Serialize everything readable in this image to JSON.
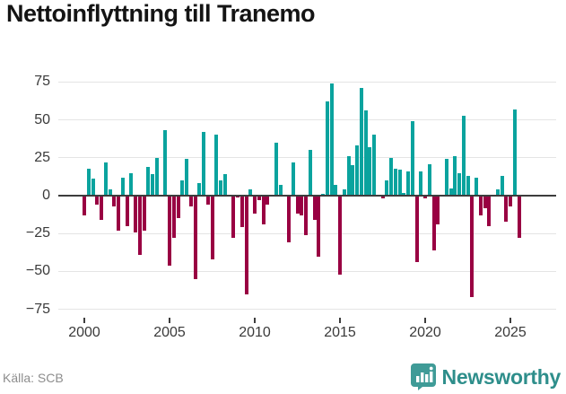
{
  "chart_data": {
    "type": "bar",
    "title": "Nettoinflyttning till Tranemo",
    "x_start_year": 2000,
    "frequency": "quarterly",
    "series_end": "2025 Q3",
    "values": [
      -13,
      18,
      11,
      -6,
      -16,
      22,
      4,
      -7,
      -23,
      12,
      -20,
      15,
      -24,
      -39,
      -23,
      19,
      14,
      25,
      0,
      43,
      -46,
      -28,
      -15,
      10,
      24,
      -7,
      -55,
      8,
      42,
      -6,
      -42,
      40,
      10,
      14,
      0,
      -28,
      -1,
      -21,
      -65,
      4,
      -12,
      -3,
      -19,
      -6,
      0,
      35,
      7,
      0,
      -31,
      22,
      -12,
      -13,
      -26,
      30,
      -16,
      -40,
      1,
      62,
      74,
      7,
      -52,
      4,
      26,
      20,
      33,
      71,
      56,
      32,
      40,
      0,
      -2,
      10,
      25,
      18,
      17,
      2,
      16,
      49,
      -44,
      16,
      -2,
      21,
      -36,
      -19,
      0,
      24,
      5,
      26,
      15,
      53,
      13,
      -67,
      12,
      -13,
      -8,
      -20,
      0,
      4,
      13,
      -17,
      -7,
      57,
      -28
    ],
    "x_tick_labels": [
      "2000",
      "2005",
      "2010",
      "2015",
      "2020",
      "2025"
    ],
    "y_tick_values": [
      75,
      50,
      25,
      0,
      -25,
      -50,
      -75
    ],
    "y_tick_labels": [
      "75",
      "50",
      "25",
      "0",
      "−25",
      "−50",
      "−75"
    ],
    "ylim": [
      -80,
      85
    ],
    "grid": "horizontal",
    "legend": "none",
    "colors": {
      "positive": "#0aa39e",
      "negative": "#990042"
    }
  },
  "footer": {
    "source": "Källa: SCB",
    "brand": "Newsworthy"
  }
}
